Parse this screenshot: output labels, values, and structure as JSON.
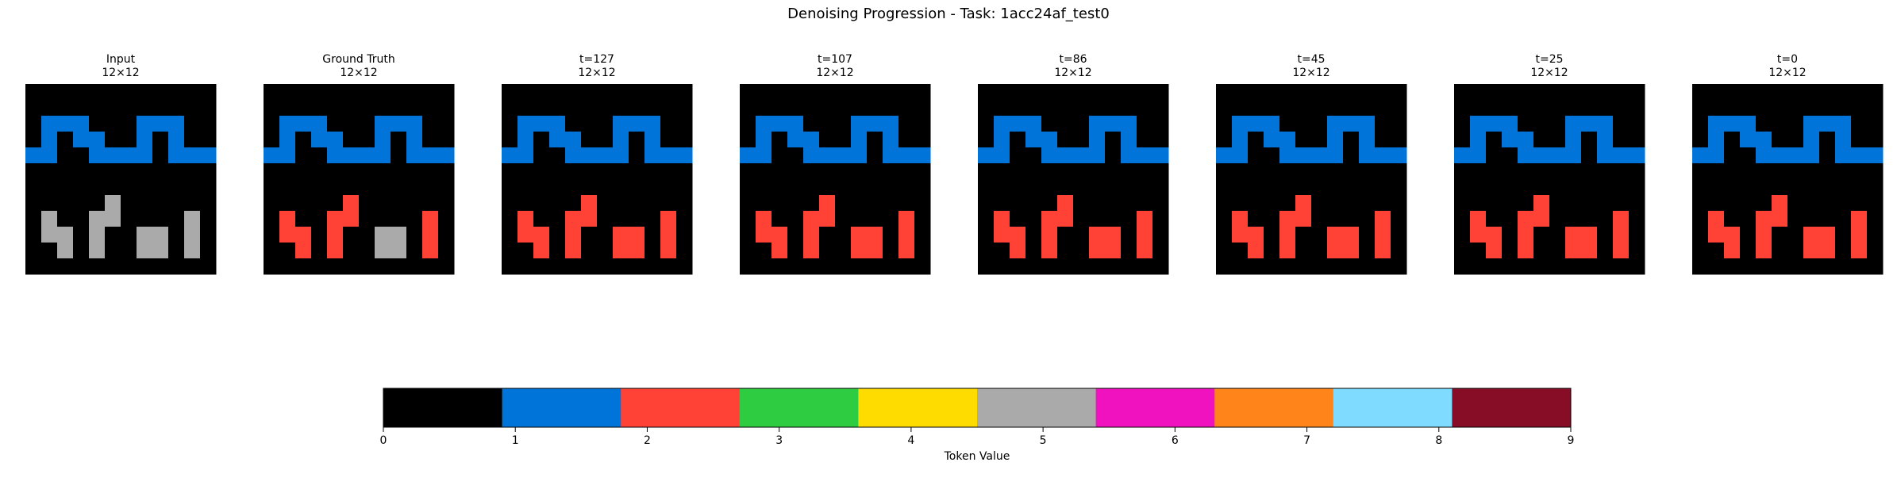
{
  "title": "Denoising Progression - Task: 1acc24af_test0",
  "panels": [
    {
      "title": "Input",
      "subtitle": "12×12",
      "grid": [
        [
          0,
          0,
          0,
          0,
          0,
          0,
          0,
          0,
          0,
          0,
          0,
          0
        ],
        [
          0,
          0,
          0,
          0,
          0,
          0,
          0,
          0,
          0,
          0,
          0,
          0
        ],
        [
          0,
          1,
          1,
          1,
          0,
          0,
          0,
          1,
          1,
          1,
          0,
          0
        ],
        [
          0,
          1,
          0,
          1,
          1,
          0,
          0,
          1,
          0,
          1,
          0,
          0
        ],
        [
          1,
          1,
          0,
          0,
          1,
          1,
          1,
          1,
          0,
          1,
          1,
          1
        ],
        [
          0,
          0,
          0,
          0,
          0,
          0,
          0,
          0,
          0,
          0,
          0,
          0
        ],
        [
          0,
          0,
          0,
          0,
          0,
          0,
          0,
          0,
          0,
          0,
          0,
          0
        ],
        [
          0,
          0,
          0,
          0,
          0,
          5,
          0,
          0,
          0,
          0,
          0,
          0
        ],
        [
          0,
          5,
          0,
          0,
          5,
          5,
          0,
          0,
          0,
          0,
          5,
          0
        ],
        [
          0,
          5,
          5,
          0,
          5,
          0,
          0,
          5,
          5,
          0,
          5,
          0
        ],
        [
          0,
          0,
          5,
          0,
          5,
          0,
          0,
          5,
          5,
          0,
          5,
          0
        ],
        [
          0,
          0,
          0,
          0,
          0,
          0,
          0,
          0,
          0,
          0,
          0,
          0
        ]
      ]
    },
    {
      "title": "Ground Truth",
      "subtitle": "12×12",
      "grid": [
        [
          0,
          0,
          0,
          0,
          0,
          0,
          0,
          0,
          0,
          0,
          0,
          0
        ],
        [
          0,
          0,
          0,
          0,
          0,
          0,
          0,
          0,
          0,
          0,
          0,
          0
        ],
        [
          0,
          1,
          1,
          1,
          0,
          0,
          0,
          1,
          1,
          1,
          0,
          0
        ],
        [
          0,
          1,
          0,
          1,
          1,
          0,
          0,
          1,
          0,
          1,
          0,
          0
        ],
        [
          1,
          1,
          0,
          0,
          1,
          1,
          1,
          1,
          0,
          1,
          1,
          1
        ],
        [
          0,
          0,
          0,
          0,
          0,
          0,
          0,
          0,
          0,
          0,
          0,
          0
        ],
        [
          0,
          0,
          0,
          0,
          0,
          0,
          0,
          0,
          0,
          0,
          0,
          0
        ],
        [
          0,
          0,
          0,
          0,
          0,
          2,
          0,
          0,
          0,
          0,
          0,
          0
        ],
        [
          0,
          2,
          0,
          0,
          2,
          2,
          0,
          0,
          0,
          0,
          2,
          0
        ],
        [
          0,
          2,
          2,
          0,
          2,
          0,
          0,
          5,
          5,
          0,
          2,
          0
        ],
        [
          0,
          0,
          2,
          0,
          2,
          0,
          0,
          5,
          5,
          0,
          2,
          0
        ],
        [
          0,
          0,
          0,
          0,
          0,
          0,
          0,
          0,
          0,
          0,
          0,
          0
        ]
      ]
    },
    {
      "title": "t=127",
      "subtitle": "12×12",
      "grid": [
        [
          0,
          0,
          0,
          0,
          0,
          0,
          0,
          0,
          0,
          0,
          0,
          0
        ],
        [
          0,
          0,
          0,
          0,
          0,
          0,
          0,
          0,
          0,
          0,
          0,
          0
        ],
        [
          0,
          1,
          1,
          1,
          0,
          0,
          0,
          1,
          1,
          1,
          0,
          0
        ],
        [
          0,
          1,
          0,
          1,
          1,
          0,
          0,
          1,
          0,
          1,
          0,
          0
        ],
        [
          1,
          1,
          0,
          0,
          1,
          1,
          1,
          1,
          0,
          1,
          1,
          1
        ],
        [
          0,
          0,
          0,
          0,
          0,
          0,
          0,
          0,
          0,
          0,
          0,
          0
        ],
        [
          0,
          0,
          0,
          0,
          0,
          0,
          0,
          0,
          0,
          0,
          0,
          0
        ],
        [
          0,
          0,
          0,
          0,
          0,
          2,
          0,
          0,
          0,
          0,
          0,
          0
        ],
        [
          0,
          2,
          0,
          0,
          2,
          2,
          0,
          0,
          0,
          0,
          2,
          0
        ],
        [
          0,
          2,
          2,
          0,
          2,
          0,
          0,
          2,
          2,
          0,
          2,
          0
        ],
        [
          0,
          0,
          2,
          0,
          2,
          0,
          0,
          2,
          2,
          0,
          2,
          0
        ],
        [
          0,
          0,
          0,
          0,
          0,
          0,
          0,
          0,
          0,
          0,
          0,
          0
        ]
      ]
    },
    {
      "title": "t=107",
      "subtitle": "12×12",
      "grid": [
        [
          0,
          0,
          0,
          0,
          0,
          0,
          0,
          0,
          0,
          0,
          0,
          0
        ],
        [
          0,
          0,
          0,
          0,
          0,
          0,
          0,
          0,
          0,
          0,
          0,
          0
        ],
        [
          0,
          1,
          1,
          1,
          0,
          0,
          0,
          1,
          1,
          1,
          0,
          0
        ],
        [
          0,
          1,
          0,
          1,
          1,
          0,
          0,
          1,
          0,
          1,
          0,
          0
        ],
        [
          1,
          1,
          0,
          0,
          1,
          1,
          1,
          1,
          0,
          1,
          1,
          1
        ],
        [
          0,
          0,
          0,
          0,
          0,
          0,
          0,
          0,
          0,
          0,
          0,
          0
        ],
        [
          0,
          0,
          0,
          0,
          0,
          0,
          0,
          0,
          0,
          0,
          0,
          0
        ],
        [
          0,
          0,
          0,
          0,
          0,
          2,
          0,
          0,
          0,
          0,
          0,
          0
        ],
        [
          0,
          2,
          0,
          0,
          2,
          2,
          0,
          0,
          0,
          0,
          2,
          0
        ],
        [
          0,
          2,
          2,
          0,
          2,
          0,
          0,
          2,
          2,
          0,
          2,
          0
        ],
        [
          0,
          0,
          2,
          0,
          2,
          0,
          0,
          2,
          2,
          0,
          2,
          0
        ],
        [
          0,
          0,
          0,
          0,
          0,
          0,
          0,
          0,
          0,
          0,
          0,
          0
        ]
      ]
    },
    {
      "title": "t=86",
      "subtitle": "12×12",
      "grid": [
        [
          0,
          0,
          0,
          0,
          0,
          0,
          0,
          0,
          0,
          0,
          0,
          0
        ],
        [
          0,
          0,
          0,
          0,
          0,
          0,
          0,
          0,
          0,
          0,
          0,
          0
        ],
        [
          0,
          1,
          1,
          1,
          0,
          0,
          0,
          1,
          1,
          1,
          0,
          0
        ],
        [
          0,
          1,
          0,
          1,
          1,
          0,
          0,
          1,
          0,
          1,
          0,
          0
        ],
        [
          1,
          1,
          0,
          0,
          1,
          1,
          1,
          1,
          0,
          1,
          1,
          1
        ],
        [
          0,
          0,
          0,
          0,
          0,
          0,
          0,
          0,
          0,
          0,
          0,
          0
        ],
        [
          0,
          0,
          0,
          0,
          0,
          0,
          0,
          0,
          0,
          0,
          0,
          0
        ],
        [
          0,
          0,
          0,
          0,
          0,
          2,
          0,
          0,
          0,
          0,
          0,
          0
        ],
        [
          0,
          2,
          0,
          0,
          2,
          2,
          0,
          0,
          0,
          0,
          2,
          0
        ],
        [
          0,
          2,
          2,
          0,
          2,
          0,
          0,
          2,
          2,
          0,
          2,
          0
        ],
        [
          0,
          0,
          2,
          0,
          2,
          0,
          0,
          2,
          2,
          0,
          2,
          0
        ],
        [
          0,
          0,
          0,
          0,
          0,
          0,
          0,
          0,
          0,
          0,
          0,
          0
        ]
      ]
    },
    {
      "title": "t=45",
      "subtitle": "12×12",
      "grid": [
        [
          0,
          0,
          0,
          0,
          0,
          0,
          0,
          0,
          0,
          0,
          0,
          0
        ],
        [
          0,
          0,
          0,
          0,
          0,
          0,
          0,
          0,
          0,
          0,
          0,
          0
        ],
        [
          0,
          1,
          1,
          1,
          0,
          0,
          0,
          1,
          1,
          1,
          0,
          0
        ],
        [
          0,
          1,
          0,
          1,
          1,
          0,
          0,
          1,
          0,
          1,
          0,
          0
        ],
        [
          1,
          1,
          0,
          0,
          1,
          1,
          1,
          1,
          0,
          1,
          1,
          1
        ],
        [
          0,
          0,
          0,
          0,
          0,
          0,
          0,
          0,
          0,
          0,
          0,
          0
        ],
        [
          0,
          0,
          0,
          0,
          0,
          0,
          0,
          0,
          0,
          0,
          0,
          0
        ],
        [
          0,
          0,
          0,
          0,
          0,
          2,
          0,
          0,
          0,
          0,
          0,
          0
        ],
        [
          0,
          2,
          0,
          0,
          2,
          2,
          0,
          0,
          0,
          0,
          2,
          0
        ],
        [
          0,
          2,
          2,
          0,
          2,
          0,
          0,
          2,
          2,
          0,
          2,
          0
        ],
        [
          0,
          0,
          2,
          0,
          2,
          0,
          0,
          2,
          2,
          0,
          2,
          0
        ],
        [
          0,
          0,
          0,
          0,
          0,
          0,
          0,
          0,
          0,
          0,
          0,
          0
        ]
      ]
    },
    {
      "title": "t=25",
      "subtitle": "12×12",
      "grid": [
        [
          0,
          0,
          0,
          0,
          0,
          0,
          0,
          0,
          0,
          0,
          0,
          0
        ],
        [
          0,
          0,
          0,
          0,
          0,
          0,
          0,
          0,
          0,
          0,
          0,
          0
        ],
        [
          0,
          1,
          1,
          1,
          0,
          0,
          0,
          1,
          1,
          1,
          0,
          0
        ],
        [
          0,
          1,
          0,
          1,
          1,
          0,
          0,
          1,
          0,
          1,
          0,
          0
        ],
        [
          1,
          1,
          0,
          0,
          1,
          1,
          1,
          1,
          0,
          1,
          1,
          1
        ],
        [
          0,
          0,
          0,
          0,
          0,
          0,
          0,
          0,
          0,
          0,
          0,
          0
        ],
        [
          0,
          0,
          0,
          0,
          0,
          0,
          0,
          0,
          0,
          0,
          0,
          0
        ],
        [
          0,
          0,
          0,
          0,
          0,
          2,
          0,
          0,
          0,
          0,
          0,
          0
        ],
        [
          0,
          2,
          0,
          0,
          2,
          2,
          0,
          0,
          0,
          0,
          2,
          0
        ],
        [
          0,
          2,
          2,
          0,
          2,
          0,
          0,
          2,
          2,
          0,
          2,
          0
        ],
        [
          0,
          0,
          2,
          0,
          2,
          0,
          0,
          2,
          2,
          0,
          2,
          0
        ],
        [
          0,
          0,
          0,
          0,
          0,
          0,
          0,
          0,
          0,
          0,
          0,
          0
        ]
      ]
    },
    {
      "title": "t=0",
      "subtitle": "12×12",
      "grid": [
        [
          0,
          0,
          0,
          0,
          0,
          0,
          0,
          0,
          0,
          0,
          0,
          0
        ],
        [
          0,
          0,
          0,
          0,
          0,
          0,
          0,
          0,
          0,
          0,
          0,
          0
        ],
        [
          0,
          1,
          1,
          1,
          0,
          0,
          0,
          1,
          1,
          1,
          0,
          0
        ],
        [
          0,
          1,
          0,
          1,
          1,
          0,
          0,
          1,
          0,
          1,
          0,
          0
        ],
        [
          1,
          1,
          0,
          0,
          1,
          1,
          1,
          1,
          0,
          1,
          1,
          1
        ],
        [
          0,
          0,
          0,
          0,
          0,
          0,
          0,
          0,
          0,
          0,
          0,
          0
        ],
        [
          0,
          0,
          0,
          0,
          0,
          0,
          0,
          0,
          0,
          0,
          0,
          0
        ],
        [
          0,
          0,
          0,
          0,
          0,
          2,
          0,
          0,
          0,
          0,
          0,
          0
        ],
        [
          0,
          2,
          0,
          0,
          2,
          2,
          0,
          0,
          0,
          0,
          2,
          0
        ],
        [
          0,
          2,
          2,
          0,
          2,
          0,
          0,
          2,
          2,
          0,
          2,
          0
        ],
        [
          0,
          0,
          2,
          0,
          2,
          0,
          0,
          2,
          2,
          0,
          2,
          0
        ],
        [
          0,
          0,
          0,
          0,
          0,
          0,
          0,
          0,
          0,
          0,
          0,
          0
        ]
      ]
    }
  ],
  "colorbar": {
    "colors": [
      "#000000",
      "#0074d9",
      "#ff4136",
      "#2ecc40",
      "#ffdc00",
      "#aaaaaa",
      "#f012be",
      "#ff851b",
      "#7fdbff",
      "#870c25"
    ],
    "xlim": [
      0,
      9
    ],
    "xticks": [
      0,
      1,
      2,
      3,
      4,
      5,
      6,
      7,
      8,
      9
    ],
    "label": "Token Value"
  }
}
